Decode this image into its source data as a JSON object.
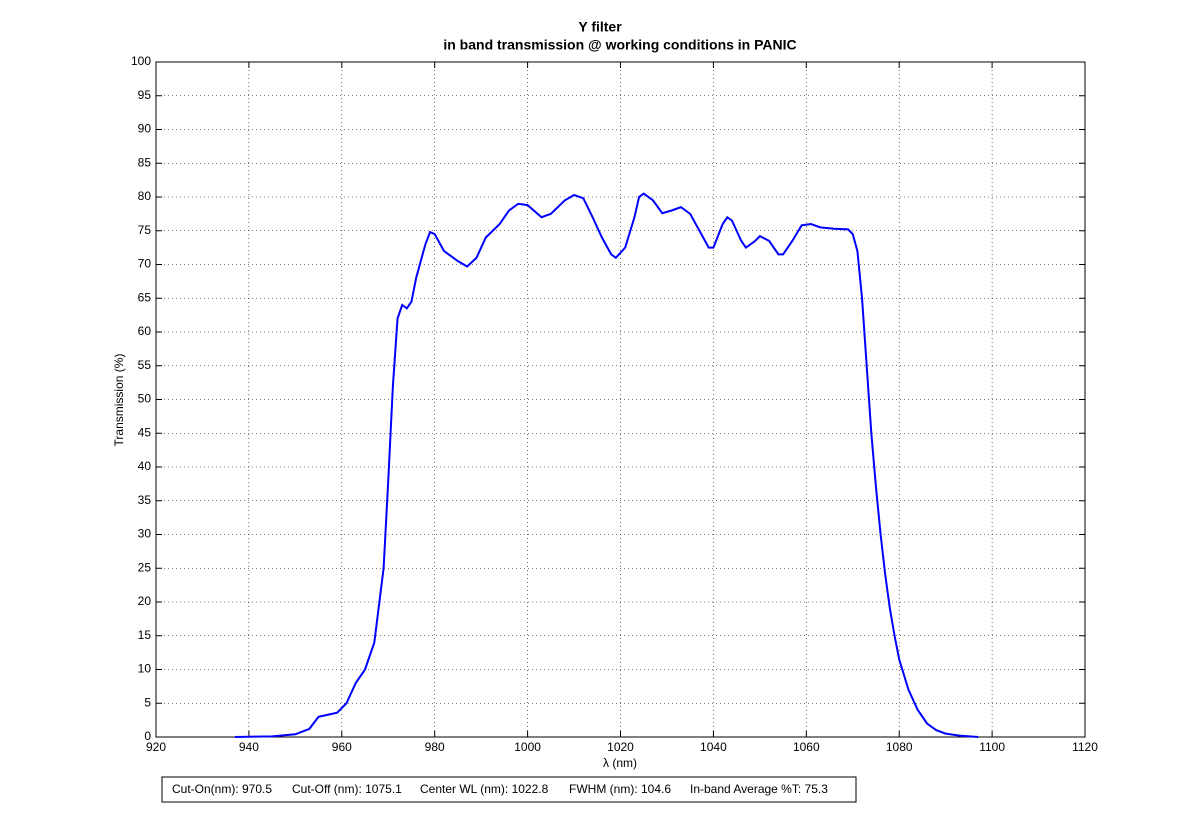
{
  "chart_data": {
    "type": "line",
    "title": "Y filter",
    "subtitle": "in band transmission @ working conditions in PANIC",
    "x_label": "λ (nm)",
    "y_label": "Transmission (%)",
    "annotations": [
      "Cut-On(nm): 970.5",
      "Cut-Off (nm): 1075.1",
      "Center WL (nm): 1022.8",
      "FWHM (nm): 104.6",
      "In-band Average %T: 75.3"
    ],
    "x": [
      937,
      945,
      950,
      953,
      955,
      957,
      959,
      961,
      963,
      965,
      967,
      969,
      970,
      971,
      972,
      973,
      974,
      975,
      976,
      978,
      979,
      980,
      982,
      985,
      987,
      989,
      991,
      994,
      996,
      998,
      1000,
      1003,
      1005,
      1008,
      1010,
      1012,
      1014,
      1016,
      1018,
      1019,
      1021,
      1023,
      1024,
      1025,
      1027,
      1029,
      1031,
      1033,
      1035,
      1037,
      1039,
      1040,
      1042,
      1043,
      1044,
      1046,
      1047,
      1049,
      1050,
      1052,
      1054,
      1055,
      1057,
      1059,
      1061,
      1063,
      1066,
      1069,
      1070,
      1071,
      1072,
      1073,
      1074,
      1075,
      1076,
      1077,
      1078,
      1079,
      1080,
      1082,
      1084,
      1086,
      1088,
      1090,
      1093,
      1097
    ],
    "series": [
      {
        "name": "Transmission",
        "color": "#0000ff",
        "values": [
          0,
          0.1,
          0.4,
          1.2,
          3.0,
          3.3,
          3.6,
          5,
          8,
          10,
          14,
          25,
          38,
          52,
          62,
          64,
          63.5,
          64.5,
          68,
          73,
          74.8,
          74.5,
          72,
          70.5,
          69.7,
          71,
          74,
          76,
          78,
          79,
          78.8,
          77,
          77.5,
          79.5,
          80.3,
          79.8,
          77,
          74,
          71.5,
          71,
          72.5,
          77,
          80,
          80.5,
          79.5,
          77.6,
          78,
          78.5,
          77.5,
          75,
          72.5,
          72.5,
          76,
          77,
          76.5,
          73.5,
          72.5,
          73.5,
          74.2,
          73.5,
          71.5,
          71.5,
          73.5,
          75.8,
          76,
          75.5,
          75.3,
          75.2,
          74.5,
          72,
          65,
          55,
          45,
          37,
          30,
          24,
          19,
          15,
          11.5,
          7,
          4,
          2,
          1,
          0.5,
          0.2,
          0
        ]
      }
    ],
    "xlim": [
      920,
      1120
    ],
    "ylim": [
      0,
      100
    ],
    "xticks": [
      920,
      940,
      960,
      980,
      1000,
      1020,
      1040,
      1060,
      1080,
      1100,
      1120
    ],
    "yticks": [
      0,
      5,
      10,
      15,
      20,
      25,
      30,
      35,
      40,
      45,
      50,
      55,
      60,
      65,
      70,
      75,
      80,
      85,
      90,
      95,
      100
    ],
    "grid": true
  }
}
